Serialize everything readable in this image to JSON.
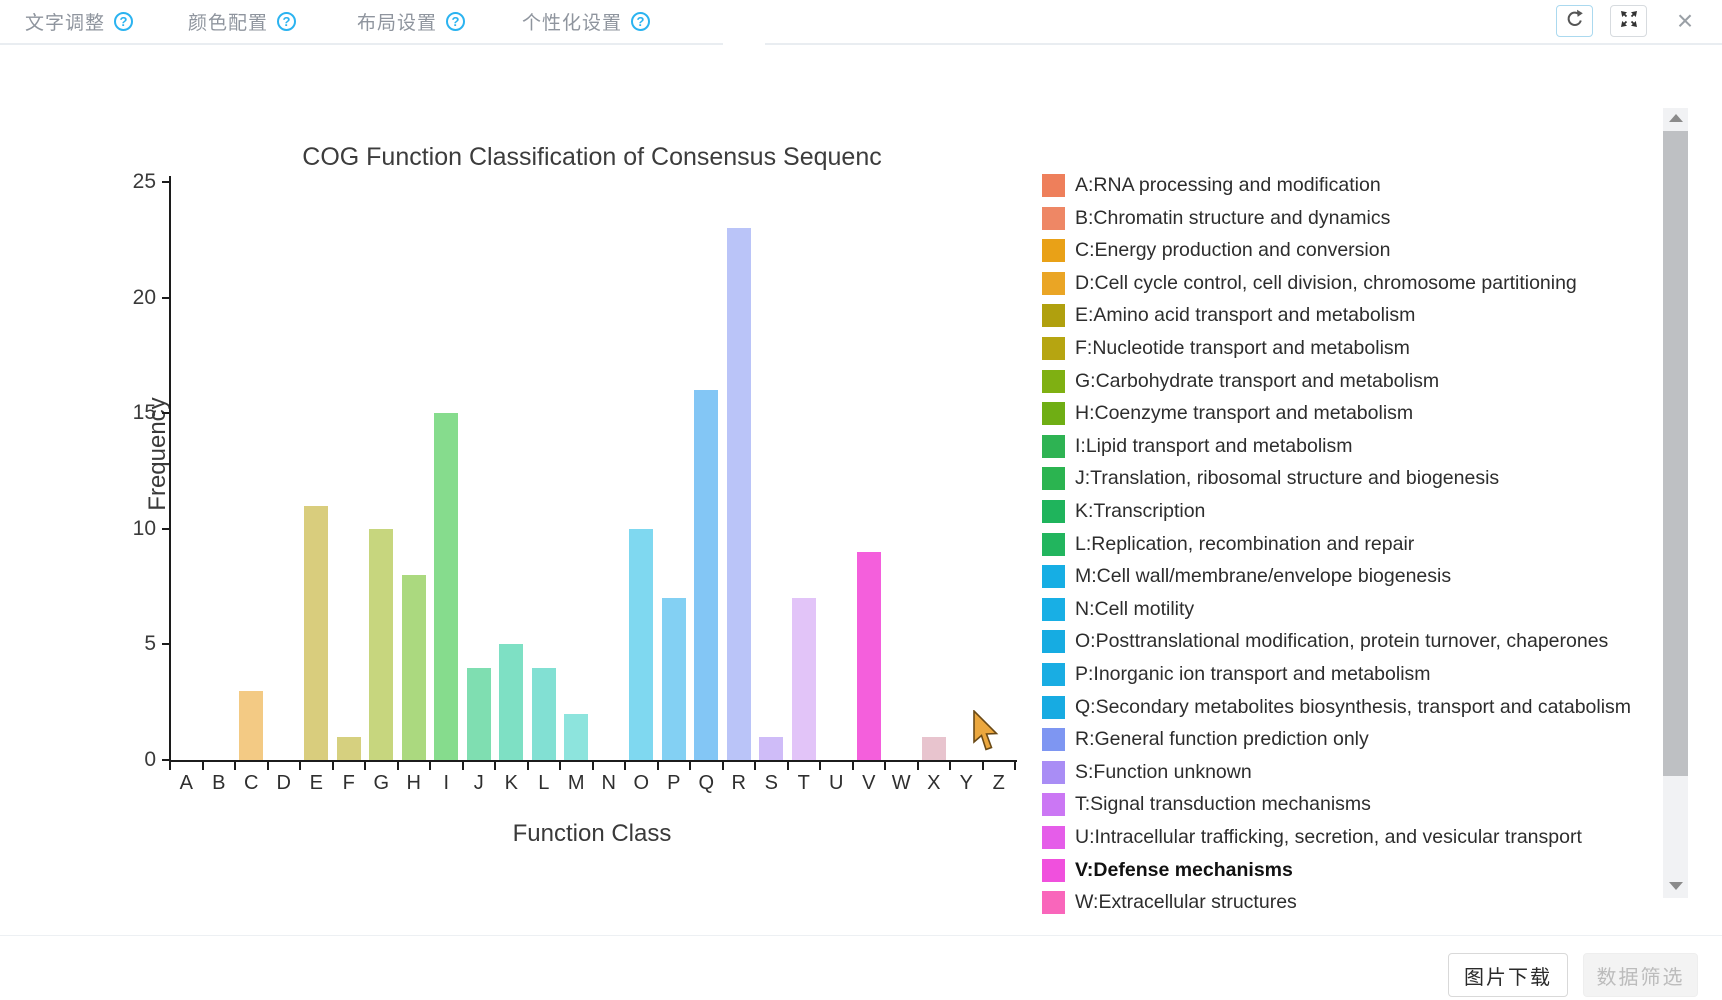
{
  "toolbar": {
    "tabs": [
      {
        "label": "文字调整"
      },
      {
        "label": "颜色配置"
      },
      {
        "label": "布局设置"
      },
      {
        "label": "个性化设置"
      }
    ],
    "help_glyph": "?"
  },
  "window_controls": {
    "close_glyph": "×"
  },
  "chart_data": {
    "type": "bar",
    "title": "COG Function Classification of Consensus Sequenc",
    "xlabel": "Function Class",
    "ylabel": "Frequency",
    "ylim": [
      0,
      25
    ],
    "yticks": [
      0,
      5,
      10,
      15,
      20,
      25
    ],
    "grid": false,
    "legend_position": "right",
    "categories": [
      "A",
      "B",
      "C",
      "D",
      "E",
      "F",
      "G",
      "H",
      "I",
      "J",
      "K",
      "L",
      "M",
      "N",
      "O",
      "P",
      "Q",
      "R",
      "S",
      "T",
      "U",
      "V",
      "W",
      "X",
      "Y",
      "Z"
    ],
    "values": [
      0,
      0,
      3,
      0,
      11,
      1,
      10,
      8,
      15,
      4,
      5,
      4,
      2,
      0,
      10,
      7,
      16,
      23,
      1,
      7,
      0,
      9,
      0,
      1,
      0,
      0
    ],
    "bar_colors": [
      "#f5b39b",
      "#f5b79e",
      "#f3ca84",
      "#f4cc8a",
      "#d9cd7d",
      "#d6d07f",
      "#c7d67e",
      "#abd97f",
      "#86dc8d",
      "#7fdeb1",
      "#7ee0c4",
      "#82e0d3",
      "#8de4dd",
      "#83dceb",
      "#7fd8f0",
      "#83d0f3",
      "#83c6f5",
      "#bac4f8",
      "#cfbcf8",
      "#e2c4f8",
      "#efc0f0",
      "#f45fdc",
      "#f7b9d9",
      "#e8c4ce",
      "#eccbd3",
      "#eed2d8"
    ],
    "highlighted_category": "V"
  },
  "legend": {
    "items": [
      {
        "code": "A",
        "label": "A:RNA processing and modification",
        "color": "#ee7f5b",
        "bold": false
      },
      {
        "code": "B",
        "label": "B:Chromatin structure and dynamics",
        "color": "#ee8765",
        "bold": false
      },
      {
        "code": "C",
        "label": "C:Energy production and conversion",
        "color": "#e9a117",
        "bold": false
      },
      {
        "code": "D",
        "label": "D:Cell cycle control, cell division, chromosome partitioning",
        "color": "#eaa525",
        "bold": false
      },
      {
        "code": "E",
        "label": "E:Amino acid transport and metabolism",
        "color": "#b0a00e",
        "bold": false
      },
      {
        "code": "F",
        "label": "F:Nucleotide transport and metabolism",
        "color": "#b6a511",
        "bold": false
      },
      {
        "code": "G",
        "label": "G:Carbohydrate transport and metabolism",
        "color": "#7fb012",
        "bold": false
      },
      {
        "code": "H",
        "label": "H:Coenzyme transport and metabolism",
        "color": "#6fae14",
        "bold": false
      },
      {
        "code": "I",
        "label": "I:Lipid transport and metabolism",
        "color": "#2eb353",
        "bold": false
      },
      {
        "code": "J",
        "label": "J:Translation, ribosomal structure and biogenesis",
        "color": "#2bb450",
        "bold": false
      },
      {
        "code": "K",
        "label": "K:Transcription",
        "color": "#1fb45c",
        "bold": false
      },
      {
        "code": "L",
        "label": "L:Replication, recombination and repair",
        "color": "#22b55e",
        "bold": false
      },
      {
        "code": "M",
        "label": "M:Cell wall/membrane/envelope biogenesis",
        "color": "#16aee4",
        "bold": false
      },
      {
        "code": "N",
        "label": "N:Cell motility",
        "color": "#18afe5",
        "bold": false
      },
      {
        "code": "O",
        "label": "O:Posttranslational modification, protein turnover, chaperones",
        "color": "#16ace2",
        "bold": false
      },
      {
        "code": "P",
        "label": "P:Inorganic ion transport and metabolism",
        "color": "#19ade3",
        "bold": false
      },
      {
        "code": "Q",
        "label": "Q:Secondary metabolites biosynthesis, transport and catabolism",
        "color": "#17abe2",
        "bold": false
      },
      {
        "code": "R",
        "label": "R:General function prediction only",
        "color": "#7e96f2",
        "bold": false
      },
      {
        "code": "S",
        "label": "S:Function unknown",
        "color": "#a98df5",
        "bold": false
      },
      {
        "code": "T",
        "label": "T:Signal transduction mechanisms",
        "color": "#cb77f4",
        "bold": false
      },
      {
        "code": "U",
        "label": "U:Intracellular trafficking, secretion, and vesicular transport",
        "color": "#e55de9",
        "bold": false
      },
      {
        "code": "V",
        "label": "V:Defense mechanisms",
        "color": "#f050dd",
        "bold": true
      },
      {
        "code": "W",
        "label": "W:Extracellular structures",
        "color": "#f966bb",
        "bold": false
      }
    ]
  },
  "footer": {
    "download_label": "图片下载",
    "filter_label": "数据筛选"
  }
}
